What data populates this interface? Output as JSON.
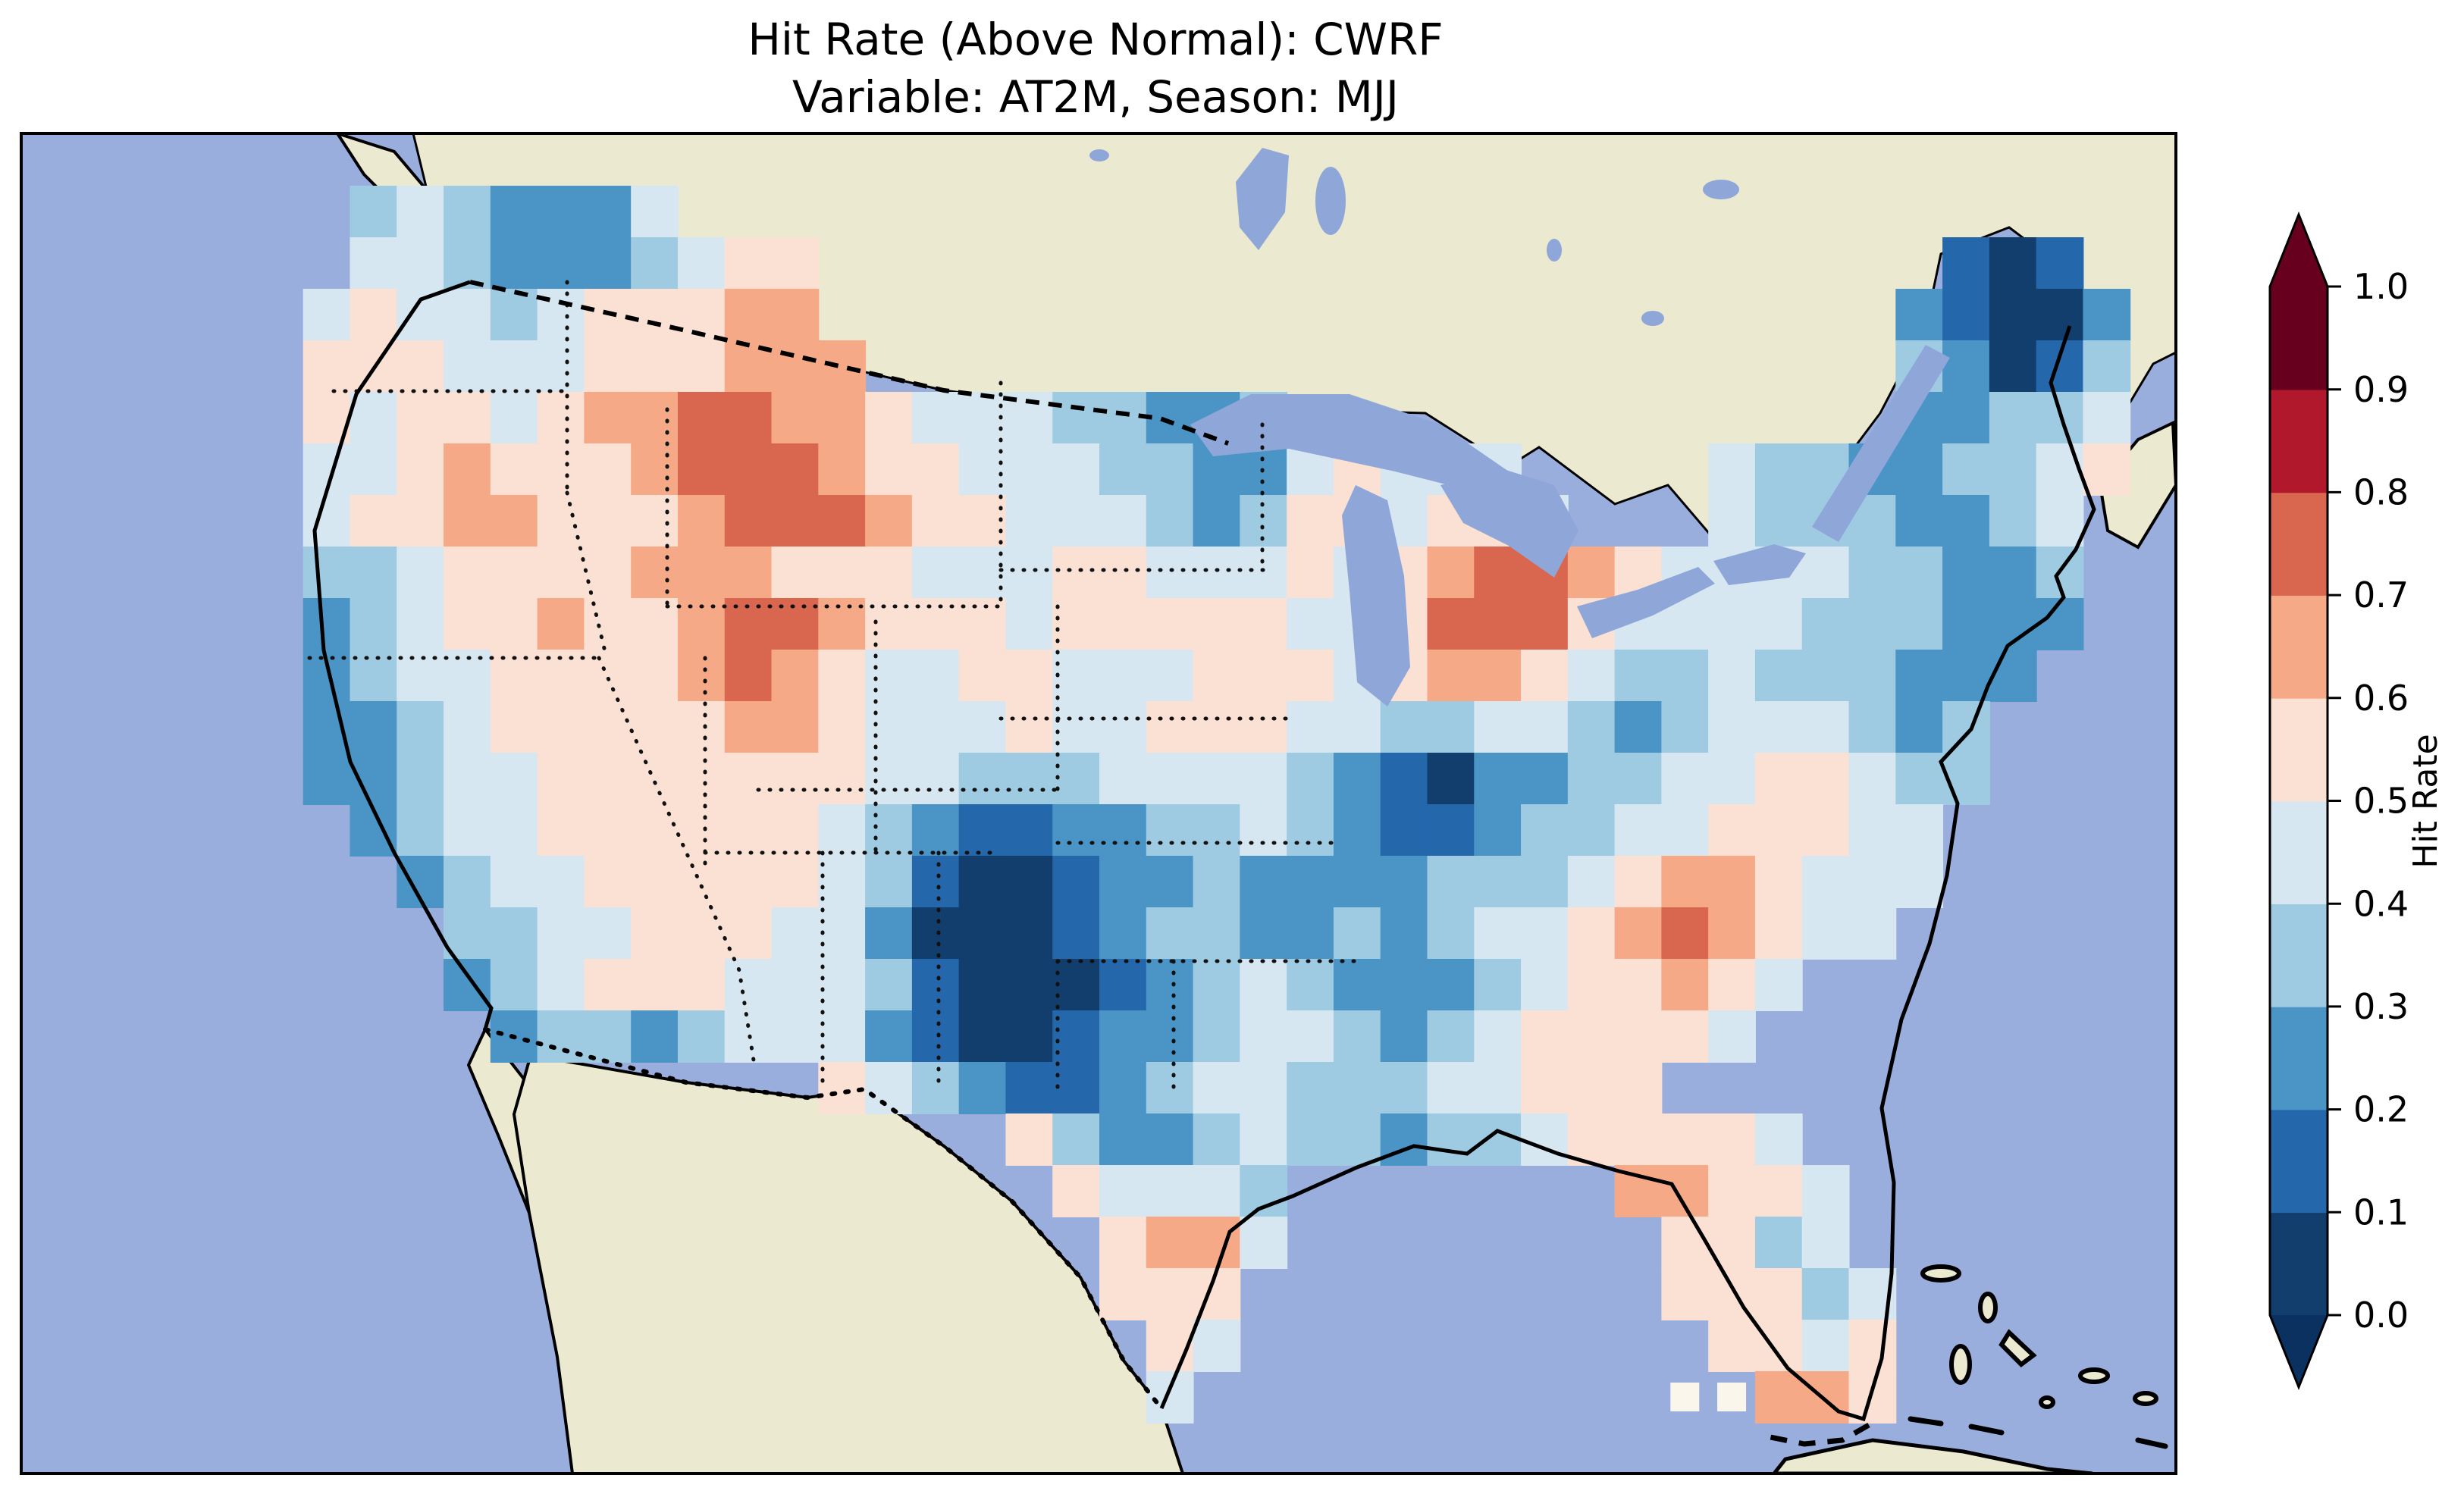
{
  "chart_data": {
    "type": "heatmap",
    "title": "Hit Rate (Above Normal): CWRF",
    "subtitle": "Variable: AT2M, Season: MJJ",
    "metric": "Hit Rate (Above Normal)",
    "model": "CWRF",
    "variable": "AT2M",
    "season": "MJJ",
    "colorbar": {
      "label": "Hit Rate",
      "orientation": "vertical",
      "extend": "both",
      "tick_labels": [
        "0.0",
        "0.1",
        "0.2",
        "0.3",
        "0.4",
        "0.5",
        "0.6",
        "0.7",
        "0.8",
        "0.9",
        "1.0"
      ],
      "boundaries": [
        0.0,
        0.1,
        0.2,
        0.3,
        0.4,
        0.5,
        0.6,
        0.7,
        0.8,
        0.9,
        1.0
      ],
      "bin_colors": [
        "#123e6e",
        "#2467ab",
        "#4a94c6",
        "#9fcbe2",
        "#d7e7f2",
        "#fae1d3",
        "#f5a987",
        "#d9664f",
        "#b2182b",
        "#67001f"
      ],
      "under_color": "#0b3160",
      "over_color": "#67001f"
    },
    "map": {
      "region": "Contiguous United States",
      "ocean_color": "#9aaedd",
      "foreign_land_color": "#ebe9d0",
      "lake_color": "#8fa6d9",
      "missing_color": "#faf6ec",
      "grid_legend": {
        "digit": "hit-rate bin index d, cell value in [d*0.1, (d+1)*0.1)",
        "w": "missing-data cell (white square)",
        ".": "no data / outside CONUS domain"
      },
      "grid_size": {
        "cols": 46,
        "rows": 26
      },
      "grid_rows": [
        "..............................................",
        ".......3432224................................",
        ".......4432223455........................101..",
        "......45443455566.......................21002.",
        "......555444555666......................32013.",
        "......545545667766544433223.............22334.",
        "......44565556777655444332245444....433223345.",
        "......455665556777655444323554554...43332234..",
        "......33455556665554445544454567765444433223..",
        "......23455655677655545555544577754444333222..",
        "......2344555567654455444555456654334333222...",
        "......223455555665444544555443344323444323....",
        "......223445555555443334444321022334455433....",
        ".......2344555555432112233432112334455544.....",
        "........234455555431001223222233345665444.....",
        ".........3344555442000123322323445676544......",
        ".........23455544431000123432223455654........",
        "..........233234442100122344323455554.........",
        ".................543211234433344555...........",
        ".....................53223433233455554........",
        "......................54443.......66554.......",
        ".......................5664........5534.......",
        ".......................555.........55534......",
        "........................54..........5545......",
        "........................4..........ww665......",
        ".............................................."
      ]
    }
  }
}
